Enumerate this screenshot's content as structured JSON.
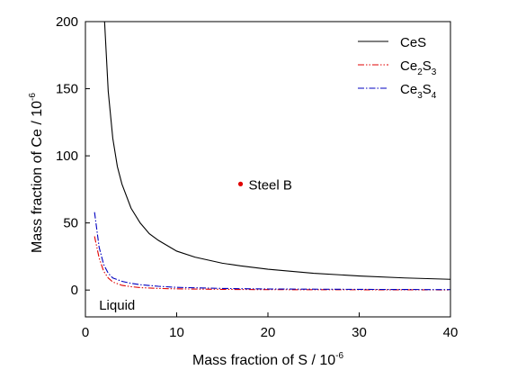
{
  "chart_data": {
    "type": "line",
    "xlabel": "Mass fraction of S / 10",
    "xlabel_exp": "-6",
    "ylabel": "Mass fraction of Ce / 10",
    "ylabel_exp": "-6",
    "xlim": [
      0,
      40
    ],
    "ylim": [
      -20,
      200
    ],
    "xticks": [
      0,
      10,
      20,
      30,
      40
    ],
    "yticks": [
      0,
      50,
      100,
      150,
      200
    ],
    "grid": false,
    "legend_position": "top-right",
    "series": [
      {
        "name": "CeS",
        "legend_parts": [
          {
            "t": "CeS",
            "sub": false
          }
        ],
        "color": "#000000",
        "dash": "none",
        "x": [
          2.1,
          2.5,
          3,
          3.5,
          4,
          5,
          6,
          7,
          8,
          10,
          12,
          15,
          17,
          20,
          25,
          30,
          35,
          40
        ],
        "y": [
          200,
          148,
          113,
          92,
          79,
          61,
          50,
          42,
          37,
          29,
          24.5,
          20,
          18,
          15.5,
          12.5,
          10.5,
          9,
          8
        ]
      },
      {
        "name": "Ce2S3",
        "legend_parts": [
          {
            "t": "Ce",
            "sub": false
          },
          {
            "t": "2",
            "sub": true
          },
          {
            "t": "S",
            "sub": false
          },
          {
            "t": "3",
            "sub": true
          }
        ],
        "color": "#e00000",
        "dash": "7,2,1.5,2,1.5,2",
        "x": [
          1,
          1.5,
          2,
          2.5,
          3,
          4,
          5,
          6,
          8,
          10,
          15,
          20,
          30,
          40
        ],
        "y": [
          40,
          24,
          14,
          9,
          6,
          3.5,
          2.5,
          1.8,
          1.2,
          0.9,
          0.5,
          0.3,
          0.2,
          0.1
        ]
      },
      {
        "name": "Ce3S4",
        "legend_parts": [
          {
            "t": "Ce",
            "sub": false
          },
          {
            "t": "3",
            "sub": true
          },
          {
            "t": "S",
            "sub": false
          },
          {
            "t": "4",
            "sub": true
          }
        ],
        "color": "#0000c0",
        "dash": "7,2,1.5,2",
        "x": [
          1,
          1.5,
          2,
          2.5,
          3,
          4,
          5,
          6,
          8,
          10,
          15,
          20,
          30,
          40
        ],
        "y": [
          58,
          32,
          19,
          12.5,
          9,
          6.5,
          5,
          4,
          2.8,
          2,
          1.2,
          0.8,
          0.5,
          0.3
        ]
      }
    ],
    "points": [
      {
        "label": "Steel B",
        "x": 17,
        "y": 79,
        "color": "#e00000"
      }
    ],
    "annotations": [
      {
        "text": "Liquid",
        "x": 1.5,
        "y": -10
      }
    ]
  }
}
